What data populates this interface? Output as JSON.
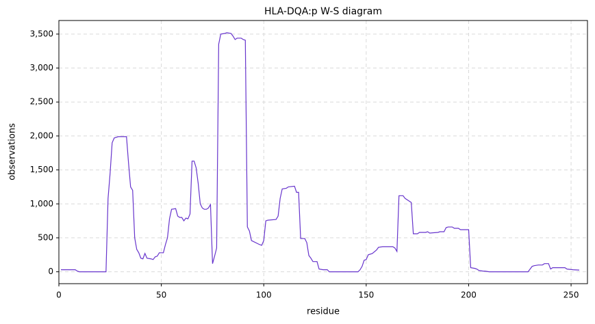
{
  "chart_data": {
    "type": "line",
    "title": "HLA-DQA:p W-S diagram",
    "xlabel": "residue",
    "ylabel": "observations",
    "grid": true,
    "xlim": [
      0,
      258
    ],
    "xticks": [
      0,
      50,
      100,
      150,
      200,
      250
    ],
    "ylim": [
      -175,
      3700
    ],
    "yticks": [
      0,
      500,
      {
        "value": 1000,
        "label": "1,000"
      },
      {
        "value": 1500,
        "label": "1,500"
      },
      {
        "value": 2000,
        "label": "2,000"
      },
      {
        "value": 2500,
        "label": "2,500"
      },
      {
        "value": 3000,
        "label": "3,000"
      },
      {
        "value": 3500,
        "label": "3,500"
      }
    ],
    "x": [
      1,
      8,
      9,
      10,
      23,
      24,
      25,
      26,
      27,
      28,
      29,
      33,
      34,
      35,
      36,
      37,
      38,
      39,
      40,
      41,
      42,
      43,
      45,
      46,
      47,
      48,
      49,
      51,
      52,
      53,
      54,
      55,
      57,
      58,
      59,
      60,
      61,
      62,
      63,
      64,
      65,
      66,
      67,
      68,
      69,
      70,
      71,
      72,
      73,
      74,
      75,
      76,
      77,
      78,
      79,
      81,
      82,
      84,
      85,
      86,
      87,
      89,
      90,
      91,
      92,
      93,
      94,
      98,
      99,
      100,
      101,
      102,
      106,
      107,
      108,
      109,
      111,
      112,
      115,
      116,
      117,
      118,
      120,
      121,
      122,
      123,
      124,
      126,
      127,
      129,
      131,
      132,
      146,
      147,
      148,
      149,
      150,
      151,
      153,
      155,
      156,
      158,
      163,
      164,
      165,
      166,
      168,
      169,
      171,
      172,
      173,
      175,
      176,
      179,
      180,
      181,
      185,
      186,
      188,
      189,
      190,
      192,
      193,
      195,
      196,
      200,
      201,
      203,
      204,
      205,
      207,
      208,
      210,
      229,
      230,
      231,
      232,
      234,
      236,
      237,
      239,
      240,
      241,
      247,
      248,
      251,
      254
    ],
    "series": [
      {
        "name": "observations",
        "color": "#6633cc",
        "values": [
          30,
          30,
          10,
          0,
          0,
          1080,
          1450,
          1900,
          1970,
          1980,
          1990,
          1990,
          1600,
          1250,
          1200,
          500,
          330,
          280,
          200,
          190,
          270,
          200,
          190,
          180,
          220,
          230,
          280,
          280,
          400,
          500,
          780,
          920,
          930,
          820,
          800,
          800,
          750,
          790,
          780,
          850,
          1630,
          1630,
          1530,
          1300,
          1000,
          940,
          920,
          920,
          940,
          990,
          120,
          230,
          350,
          3350,
          3500,
          3510,
          3520,
          3510,
          3470,
          3420,
          3440,
          3440,
          3420,
          3410,
          660,
          600,
          460,
          400,
          390,
          460,
          750,
          760,
          770,
          820,
          1080,
          1220,
          1230,
          1250,
          1260,
          1170,
          1170,
          490,
          490,
          430,
          240,
          200,
          150,
          150,
          40,
          30,
          30,
          0,
          0,
          30,
          80,
          170,
          180,
          250,
          270,
          320,
          360,
          370,
          370,
          350,
          300,
          1120,
          1120,
          1080,
          1040,
          1020,
          560,
          560,
          580,
          580,
          590,
          570,
          580,
          590,
          590,
          650,
          660,
          660,
          640,
          640,
          620,
          620,
          60,
          50,
          40,
          20,
          10,
          10,
          0,
          0,
          40,
          80,
          90,
          100,
          100,
          120,
          120,
          40,
          60,
          60,
          40,
          30,
          25
        ]
      }
    ]
  }
}
